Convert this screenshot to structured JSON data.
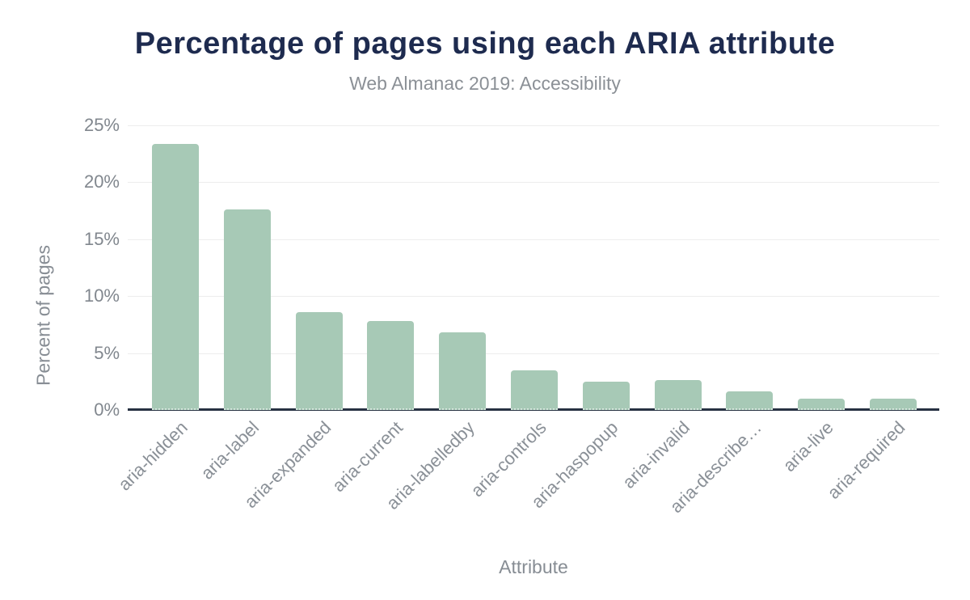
{
  "chart_data": {
    "type": "bar",
    "title": "Percentage of pages using each ARIA attribute",
    "subtitle": "Web Almanac 2019: Accessibility",
    "xlabel": "Attribute",
    "ylabel": "Percent of pages",
    "categories": [
      "aria-hidden",
      "aria-label",
      "aria-expanded",
      "aria-current",
      "aria-labelledby",
      "aria-controls",
      "aria-haspopup",
      "aria-invalid",
      "aria-describe…",
      "aria-live",
      "aria-required"
    ],
    "values": [
      23.4,
      17.6,
      8.6,
      7.8,
      6.8,
      3.5,
      2.5,
      2.6,
      1.6,
      1.0,
      1.0
    ],
    "ylim": [
      0,
      25
    ],
    "ytick_step": 5,
    "ytick_labels": [
      "0%",
      "5%",
      "10%",
      "15%",
      "20%",
      "25%"
    ],
    "grid": true,
    "legend": false,
    "bar_color": "#a7c9b6",
    "title_color": "#1e2b4f",
    "subtitle_color": "#8b9096",
    "axis_label_color": "#868c93",
    "gridline_color": "#ededed",
    "axis_line_color": "#273142"
  }
}
